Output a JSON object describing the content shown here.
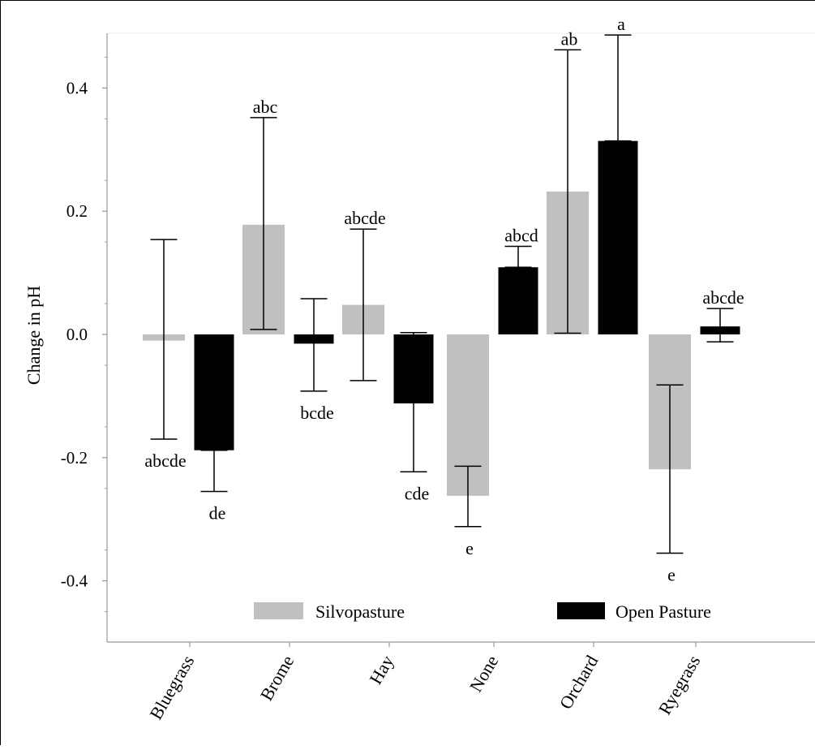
{
  "chart_data": {
    "type": "bar",
    "title": "",
    "xlabel": "",
    "ylabel": "Change in pH",
    "ylim": [
      -0.5,
      0.5
    ],
    "yticks": [
      0.4,
      0.2,
      0.0,
      -0.2,
      -0.4
    ],
    "ytick_labels": [
      "0.4",
      "0.2",
      "0.0",
      "-0.2",
      "-0.4"
    ],
    "grid": false,
    "legend_position": "bottom-center",
    "categories": [
      "Bluegrass",
      "Brome",
      "Hay",
      "None",
      "Orchard",
      "Ryegrass"
    ],
    "series": [
      {
        "name": "Silvopasture",
        "color": "#c0c0c0",
        "values": [
          -0.01,
          0.178,
          0.048,
          -0.262,
          0.232,
          -0.219
        ],
        "err_low": [
          -0.17,
          0.008,
          -0.075,
          -0.312,
          0.002,
          -0.355
        ],
        "err_high": [
          0.154,
          0.352,
          0.171,
          -0.214,
          0.462,
          -0.082
        ],
        "letters": [
          "abcde",
          "abc",
          "abcde",
          "e",
          "ab",
          "e"
        ]
      },
      {
        "name": "Open Pasture",
        "color": "#000000",
        "values": [
          -0.188,
          -0.015,
          -0.112,
          0.109,
          0.314,
          0.013
        ],
        "err_low": [
          -0.255,
          -0.092,
          -0.223,
          0.109,
          0.314,
          -0.012
        ],
        "err_high": [
          -0.188,
          0.058,
          0.003,
          0.143,
          0.486,
          0.042
        ],
        "letters": [
          "de",
          "bcde",
          "cde",
          "abcd",
          "a",
          "abcde"
        ]
      }
    ]
  }
}
